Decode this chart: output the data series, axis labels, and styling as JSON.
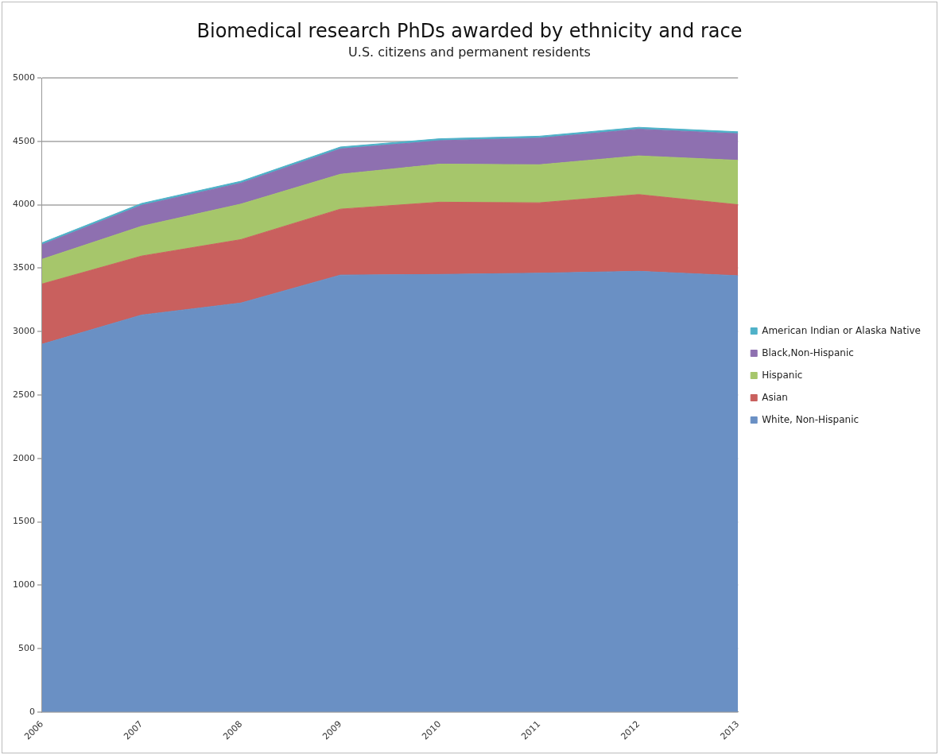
{
  "chart_data": {
    "type": "area",
    "title": "Biomedical research PhDs awarded by ethnicity and race",
    "subtitle": "U.S. citizens and permanent residents",
    "categories": [
      "2006",
      "2007",
      "2008",
      "2009",
      "2010",
      "2011",
      "2012",
      "2013"
    ],
    "stacked": true,
    "series": [
      {
        "name": "White, Non-Hispanic",
        "color": "#6a90c4",
        "values": [
          2900,
          3130,
          3225,
          3445,
          3450,
          3460,
          3475,
          3440
        ]
      },
      {
        "name": "Asian",
        "color": "#c9605e",
        "values": [
          475,
          465,
          500,
          520,
          570,
          555,
          605,
          560
        ]
      },
      {
        "name": "Hispanic",
        "color": "#a6c66b",
        "values": [
          195,
          235,
          280,
          275,
          300,
          300,
          305,
          350
        ]
      },
      {
        "name": "Black,Non-Hispanic",
        "color": "#8e70b0",
        "values": [
          115,
          165,
          165,
          200,
          185,
          210,
          210,
          210
        ]
      },
      {
        "name": "American Indian or Alaska Native",
        "color": "#4fb1c8",
        "values": [
          15,
          15,
          15,
          15,
          15,
          15,
          15,
          15
        ]
      }
    ],
    "ylim": [
      0,
      5000
    ],
    "yticks": [
      0,
      500,
      1000,
      1500,
      2000,
      2500,
      3000,
      3500,
      4000,
      4500,
      5000
    ],
    "grid": "y",
    "legend": "right"
  }
}
